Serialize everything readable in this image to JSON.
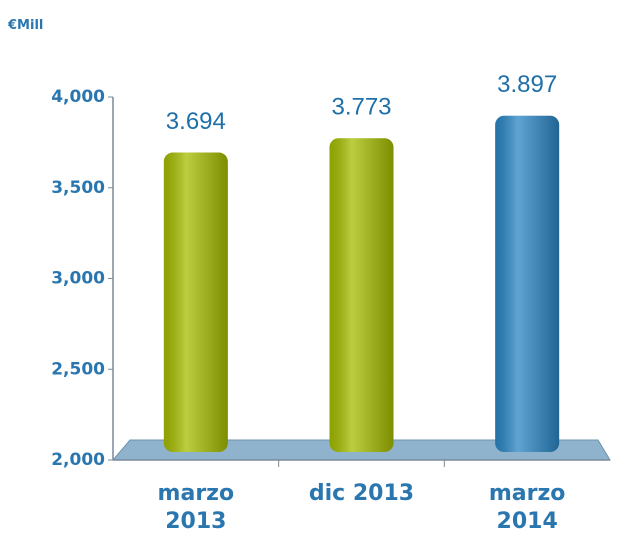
{
  "chart_data": {
    "type": "bar",
    "unit_label": "€Mill",
    "categories": [
      "marzo 2013",
      "dic 2013",
      "marzo 2014"
    ],
    "values": [
      3694,
      3773,
      3897
    ],
    "value_labels": [
      "3.694",
      "3.773",
      "3.897"
    ],
    "colors": [
      "#a6bd00",
      "#a6bd00",
      "#2a86c4"
    ],
    "ylim": [
      2000,
      4000
    ],
    "yticks": [
      {
        "value": 2000,
        "label": "2,000"
      },
      {
        "value": 2500,
        "label": "2,500"
      },
      {
        "value": 3000,
        "label": "3,000"
      },
      {
        "value": 3500,
        "label": "3,500"
      },
      {
        "value": 4000,
        "label": "4,000"
      }
    ]
  }
}
